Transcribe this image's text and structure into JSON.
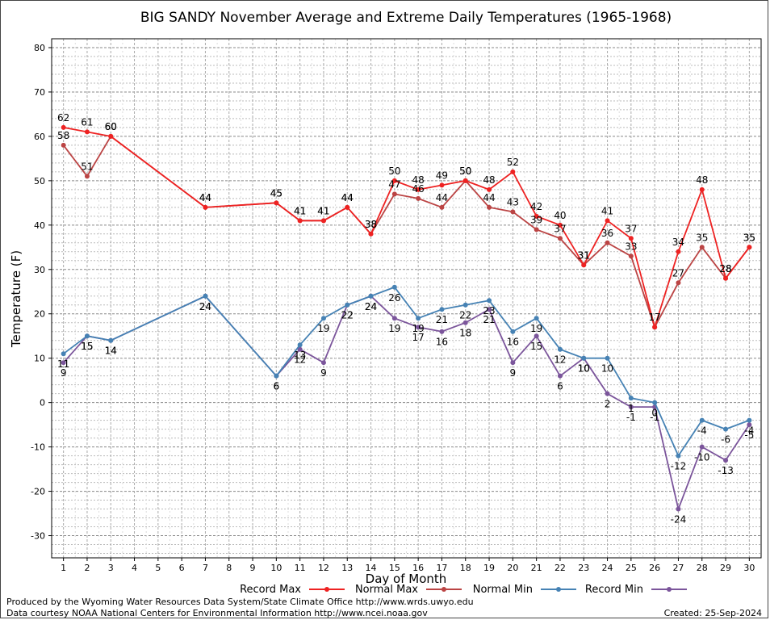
{
  "chart_data": {
    "type": "line",
    "title": "BIG SANDY November Average and Extreme Daily Temperatures (1965-1968)",
    "xlabel": "Day of Month",
    "ylabel": "Temperature (F)",
    "ylim": [
      -35,
      82
    ],
    "xlim": [
      0.5,
      30.5
    ],
    "yticks": [
      -30,
      -20,
      -10,
      0,
      10,
      20,
      30,
      40,
      50,
      60,
      70,
      80
    ],
    "xticks": [
      1,
      2,
      3,
      4,
      5,
      6,
      7,
      8,
      9,
      10,
      11,
      12,
      13,
      14,
      15,
      16,
      17,
      18,
      19,
      20,
      21,
      22,
      23,
      24,
      25,
      26,
      27,
      28,
      29,
      30
    ],
    "grid": true,
    "legend_position": "bottom",
    "series": [
      {
        "name": "Record Max",
        "color": "#ee2222",
        "label_pos": "above",
        "points": [
          [
            1,
            62
          ],
          [
            2,
            61
          ],
          [
            3,
            60
          ],
          [
            7,
            44
          ],
          [
            10,
            45
          ],
          [
            11,
            41
          ],
          [
            12,
            41
          ],
          [
            13,
            44
          ],
          [
            14,
            38
          ],
          [
            15,
            50
          ],
          [
            16,
            48
          ],
          [
            17,
            49
          ],
          [
            18,
            50
          ],
          [
            19,
            48
          ],
          [
            20,
            52
          ],
          [
            21,
            42
          ],
          [
            22,
            40
          ],
          [
            23,
            31
          ],
          [
            24,
            41
          ],
          [
            25,
            37
          ],
          [
            26,
            17
          ],
          [
            27,
            34
          ],
          [
            28,
            48
          ],
          [
            29,
            28
          ],
          [
            30,
            35
          ]
        ]
      },
      {
        "name": "Normal Max",
        "color": "#bb4444",
        "label_pos": "above",
        "points": [
          [
            1,
            58
          ],
          [
            2,
            51
          ],
          [
            3,
            60
          ],
          [
            7,
            44
          ],
          [
            10,
            45
          ],
          [
            11,
            41
          ],
          [
            12,
            41
          ],
          [
            13,
            44
          ],
          [
            14,
            38
          ],
          [
            15,
            47
          ],
          [
            16,
            46
          ],
          [
            17,
            44
          ],
          [
            18,
            50
          ],
          [
            19,
            44
          ],
          [
            20,
            43
          ],
          [
            21,
            39
          ],
          [
            22,
            37
          ],
          [
            23,
            31
          ],
          [
            24,
            36
          ],
          [
            25,
            33
          ],
          [
            26,
            17
          ],
          [
            27,
            27
          ],
          [
            28,
            35
          ],
          [
            29,
            28
          ],
          [
            30,
            35
          ]
        ]
      },
      {
        "name": "Normal Min",
        "color": "#4682b4",
        "label_pos": "below",
        "points": [
          [
            1,
            11
          ],
          [
            2,
            15
          ],
          [
            3,
            14
          ],
          [
            7,
            24
          ],
          [
            10,
            6
          ],
          [
            11,
            13
          ],
          [
            12,
            19
          ],
          [
            13,
            22
          ],
          [
            14,
            24
          ],
          [
            15,
            26
          ],
          [
            16,
            19
          ],
          [
            17,
            21
          ],
          [
            18,
            22
          ],
          [
            19,
            23
          ],
          [
            20,
            16
          ],
          [
            21,
            19
          ],
          [
            22,
            12
          ],
          [
            23,
            10
          ],
          [
            24,
            10
          ],
          [
            25,
            1
          ],
          [
            26,
            0
          ],
          [
            27,
            -12
          ],
          [
            28,
            -4
          ],
          [
            29,
            -6
          ],
          [
            30,
            -4
          ]
        ]
      },
      {
        "name": "Record Min",
        "color": "#7b559b",
        "label_pos": "below",
        "points": [
          [
            1,
            9
          ],
          [
            2,
            15
          ],
          [
            3,
            14
          ],
          [
            7,
            24
          ],
          [
            10,
            6
          ],
          [
            11,
            12
          ],
          [
            12,
            9
          ],
          [
            13,
            22
          ],
          [
            14,
            24
          ],
          [
            15,
            19
          ],
          [
            16,
            17
          ],
          [
            17,
            16
          ],
          [
            18,
            18
          ],
          [
            19,
            21
          ],
          [
            20,
            9
          ],
          [
            21,
            15
          ],
          [
            22,
            6
          ],
          [
            23,
            10
          ],
          [
            24,
            2
          ],
          [
            25,
            -1
          ],
          [
            26,
            -1
          ],
          [
            27,
            -24
          ],
          [
            28,
            -10
          ],
          [
            29,
            -13
          ],
          [
            30,
            -5
          ]
        ]
      }
    ]
  },
  "footer": {
    "credit_line_1": "Produced by the Wyoming Water Resources Data System/State Climate Office http://www.wrds.uwyo.edu",
    "credit_line_2": "Data courtesy NOAA National Centers for Environmental Information http://www.ncei.noaa.gov",
    "created": "Created: 25-Sep-2024"
  }
}
